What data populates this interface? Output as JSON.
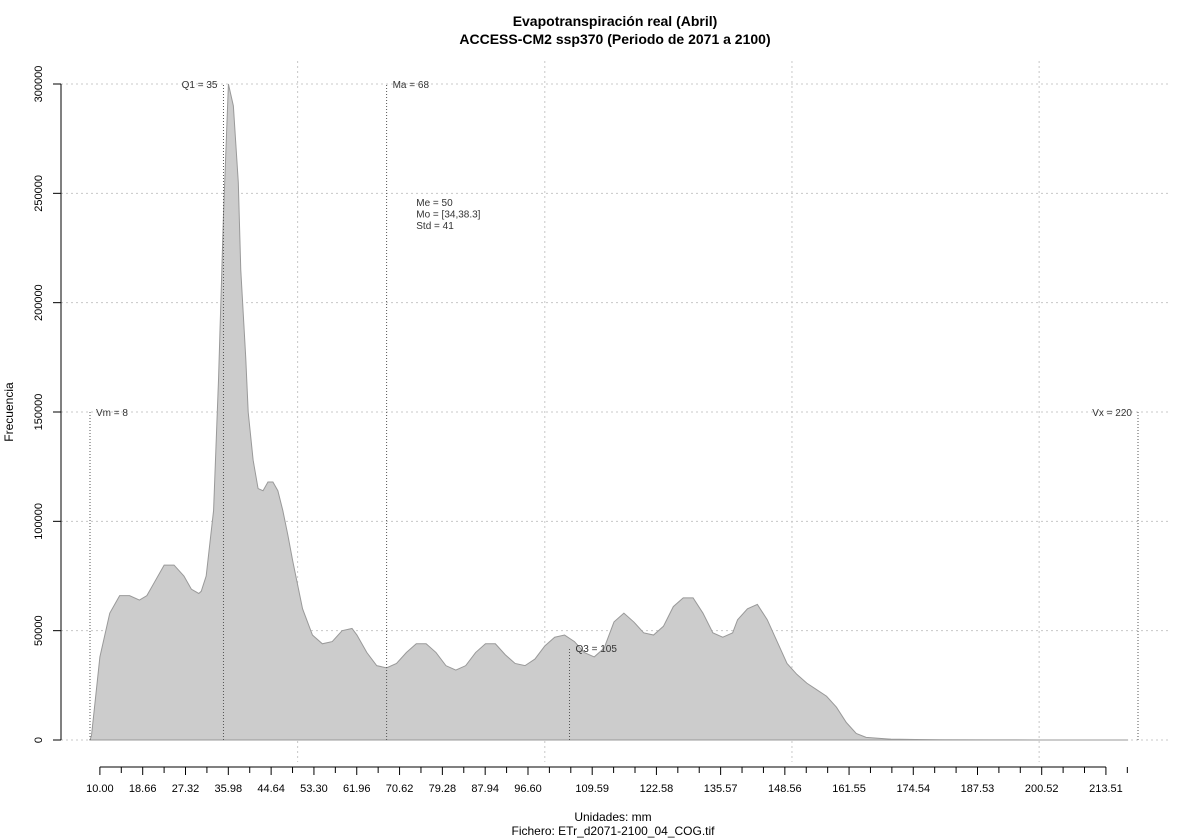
{
  "chart_data": {
    "type": "area",
    "title": "Evapotranspiración real (Abril)",
    "subtitle": "ACCESS-CM2 ssp370 (Periodo de 2071 a 2100)",
    "xlabel": "Unidades: mm",
    "ylabel": "Frecuencia",
    "footer": "Fichero: ETr_d2071-2100_04_COG.tif",
    "xlim": [
      6,
      224
    ],
    "ylim": [
      0,
      300000
    ],
    "x_ticks": [
      "10.00",
      "18.66",
      "27.32",
      "35.98",
      "44.64",
      "53.30",
      "61.96",
      "70.62",
      "79.28",
      "87.94",
      "96.60",
      "109.59",
      "122.58",
      "135.57",
      "148.56",
      "161.55",
      "174.54",
      "187.53",
      "200.52",
      "213.51"
    ],
    "x_minor_ticks": [
      14.33,
      22.99,
      31.65,
      40.31,
      48.97,
      57.63,
      66.29,
      74.95,
      83.61,
      92.27,
      100.93,
      105.26,
      113.92,
      118.25,
      126.91,
      131.24,
      139.9,
      144.23,
      152.89,
      157.22,
      165.88,
      170.21,
      178.87,
      183.2,
      191.86,
      196.19,
      204.85,
      209.18,
      217.84
    ],
    "y_ticks": [
      0,
      50000,
      100000,
      150000,
      200000,
      250000,
      300000
    ],
    "grid": true,
    "fill_color": "#cccccc",
    "line_color": "#999999",
    "series": [
      {
        "x": [
          8,
          8.3,
          10,
          12,
          14,
          16,
          18,
          19.5,
          21,
          23,
          25,
          27,
          28.5,
          30,
          30.5,
          31.5,
          33,
          34,
          35,
          36,
          37,
          38,
          38.5,
          39.5,
          40,
          41,
          42,
          43,
          44,
          45,
          46,
          47,
          48,
          49,
          51,
          53,
          55,
          57,
          59,
          61,
          62,
          64,
          66,
          68,
          70,
          72,
          74,
          76,
          78,
          80,
          82,
          84,
          86,
          88,
          90,
          92,
          94,
          96,
          98,
          100,
          102,
          104,
          106,
          108,
          110,
          112,
          114,
          116,
          118,
          120,
          122,
          124,
          126,
          128,
          130,
          132,
          134,
          136,
          138,
          139,
          141,
          143,
          145,
          147,
          149,
          151,
          153,
          155,
          157,
          159,
          161,
          163,
          165,
          170,
          175,
          180,
          190,
          200,
          210,
          218
        ],
        "y": [
          0,
          2000,
          38000,
          58000,
          66000,
          66000,
          64000,
          66000,
          72000,
          80000,
          80000,
          75000,
          69000,
          67000,
          68000,
          75000,
          105000,
          165000,
          240000,
          300000,
          290000,
          255000,
          215000,
          175000,
          150000,
          128000,
          115000,
          114000,
          118000,
          118000,
          114000,
          105000,
          94000,
          82000,
          60000,
          48000,
          44000,
          45000,
          50000,
          51000,
          48000,
          40000,
          34000,
          33000,
          35000,
          40000,
          44000,
          44000,
          40000,
          34000,
          32000,
          34000,
          40000,
          44000,
          44000,
          39000,
          35000,
          34000,
          37000,
          43000,
          47000,
          48000,
          45000,
          40000,
          38000,
          42000,
          54000,
          58000,
          54000,
          49000,
          48000,
          52000,
          61000,
          65000,
          65000,
          58000,
          49000,
          47000,
          49000,
          55000,
          60000,
          62000,
          55000,
          45000,
          35000,
          30000,
          26000,
          23000,
          20000,
          15000,
          8000,
          3000,
          1200,
          400,
          200,
          100,
          50,
          20,
          0,
          0
        ]
      }
    ],
    "vlines": [
      {
        "x": 8,
        "label": "Vm = 8",
        "ymax": 150000,
        "anchor": "left"
      },
      {
        "x": 35,
        "label": "Q1 = 35",
        "ymax": 300000,
        "anchor": "right"
      },
      {
        "x": 68,
        "label": "Ma = 68",
        "ymax": 300000,
        "anchor": "left"
      },
      {
        "x": 105,
        "label": "Q3 = 105",
        "ymax": 42000,
        "anchor": "left"
      },
      {
        "x": 220,
        "label": "Vx = 220",
        "ymax": 150000,
        "anchor": "right"
      }
    ],
    "stats": [
      "Me = 50",
      "Mo = [34,38.3]",
      "Std = 41"
    ]
  }
}
